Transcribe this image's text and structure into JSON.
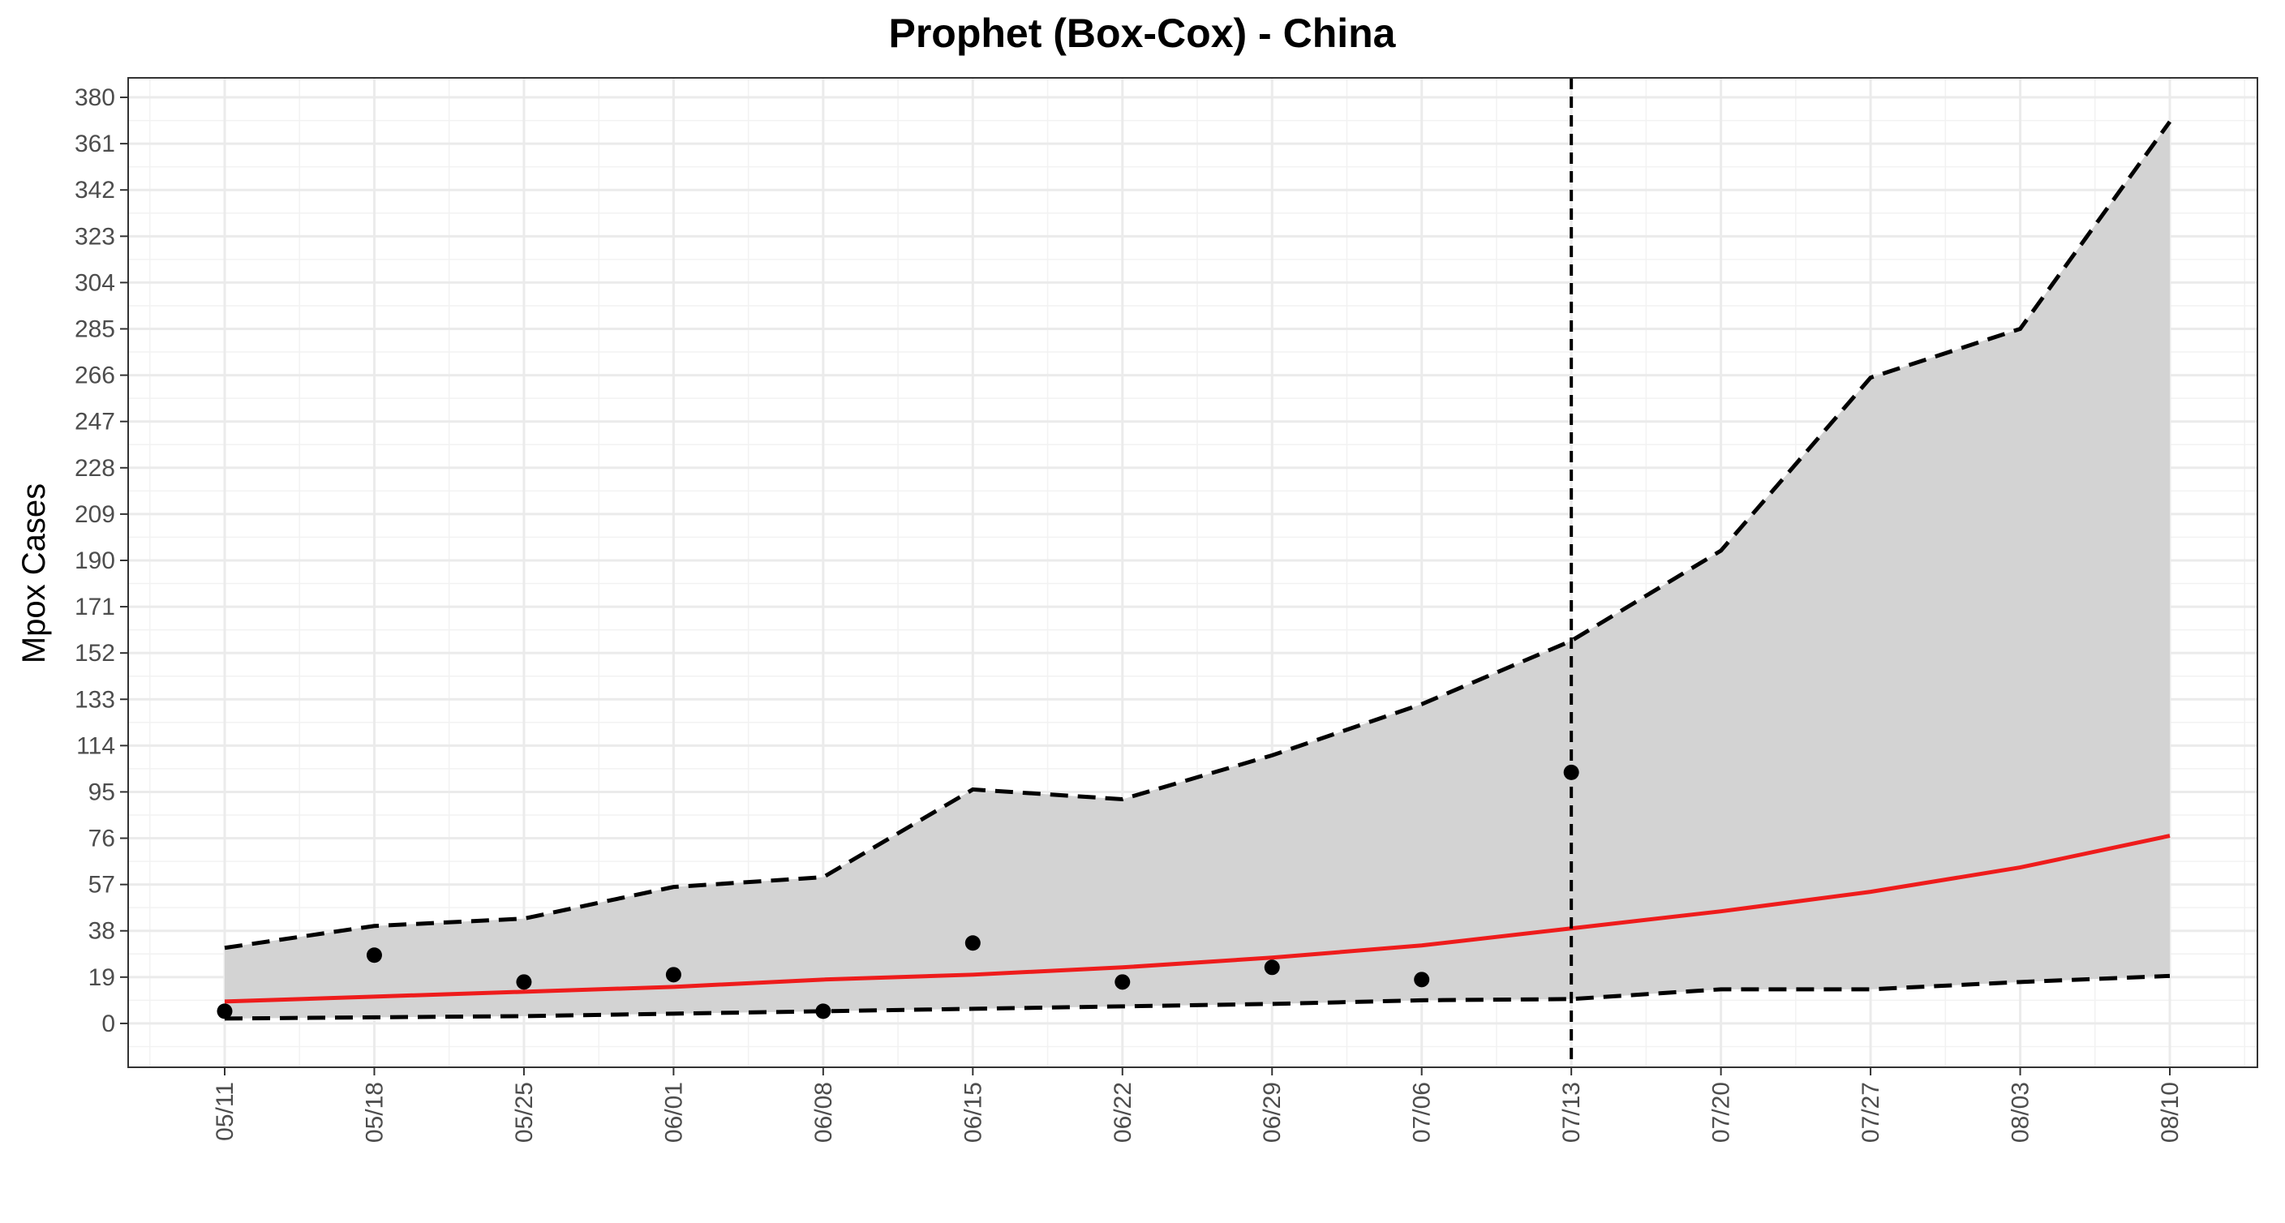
{
  "chart_data": {
    "type": "line",
    "title": "Prophet (Box-Cox) - China",
    "xlabel": "",
    "ylabel": "Mpox Cases",
    "x": [
      "05/11",
      "05/18",
      "05/25",
      "06/01",
      "06/08",
      "06/15",
      "06/22",
      "06/29",
      "07/06",
      "07/13",
      "07/20",
      "07/27",
      "08/03",
      "08/10"
    ],
    "x_ticks": [
      "05/11",
      "05/18",
      "05/25",
      "06/01",
      "06/08",
      "06/15",
      "06/22",
      "06/29",
      "07/06",
      "07/13",
      "07/20",
      "07/27",
      "08/03",
      "08/10"
    ],
    "y_ticks": [
      0,
      19,
      38,
      57,
      76,
      95,
      114,
      133,
      152,
      171,
      190,
      209,
      228,
      247,
      266,
      285,
      304,
      323,
      342,
      361,
      380
    ],
    "ylim": [
      -18,
      388
    ],
    "grid": true,
    "split_marker": "07/13",
    "series": [
      {
        "role": "observed",
        "style": "points",
        "color": "#000000",
        "x": [
          "05/11",
          "05/18",
          "05/25",
          "06/01",
          "06/08",
          "06/15",
          "06/22",
          "06/29",
          "07/06",
          "07/13"
        ],
        "values": [
          5,
          28,
          17,
          20,
          5,
          33,
          17,
          23,
          18,
          103
        ]
      },
      {
        "role": "forecast",
        "style": "line",
        "color": "#ee1c1c",
        "values": [
          9,
          11,
          13,
          15,
          18,
          20,
          23,
          27,
          32,
          39,
          46,
          54,
          64,
          77
        ]
      },
      {
        "role": "upper-bound",
        "style": "dashed",
        "color": "#000000",
        "values": [
          31,
          40,
          43,
          56,
          60,
          96,
          92,
          110,
          131,
          157,
          194,
          265,
          285,
          370
        ]
      },
      {
        "role": "lower-bound",
        "style": "dashed",
        "color": "#000000",
        "values": [
          2,
          2.5,
          3,
          4,
          5,
          6,
          7,
          8,
          9.5,
          10,
          14,
          14,
          17,
          19.5
        ]
      }
    ],
    "band_color": "#d3d3d3"
  }
}
